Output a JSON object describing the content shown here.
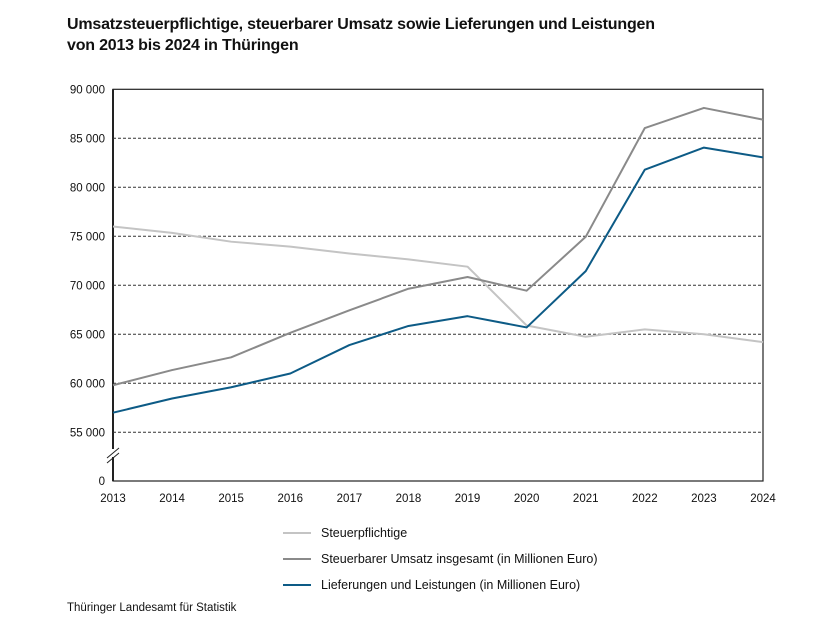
{
  "title_lines": [
    "Umsatzsteuerpflichtige, steuerbarer Umsatz sowie Lieferungen und Leistungen",
    "von 2013 bis 2024 in Thüringen"
  ],
  "footer": "Thüringer Landesamt für Statistik",
  "chart_data": {
    "type": "line",
    "title": "Umsatzsteuerpflichtige, steuerbarer Umsatz sowie Lieferungen und Leistungen von 2013 bis 2024 in Thüringen",
    "x": [
      "2013",
      "2014",
      "2015",
      "2016",
      "2017",
      "2018",
      "2019",
      "2020",
      "2021",
      "2022",
      "2023",
      "2024"
    ],
    "y_ticks": [
      "90 000",
      "85 000",
      "80 000",
      "75 000",
      "70 000",
      "65 000",
      "60 000",
      "55 000",
      "0"
    ],
    "y_tick_values": [
      90000,
      85000,
      80000,
      75000,
      70000,
      65000,
      60000,
      55000,
      0
    ],
    "ylim": [
      0,
      90000
    ],
    "y_axis_break": "between 0 and 55 000",
    "grid": "horizontal dashed",
    "legend_position": "bottom",
    "series": [
      {
        "name": "Steuerpflichtige",
        "color": "#c4c4c4",
        "values": [
          76000,
          75350,
          74450,
          73950,
          73250,
          72650,
          71900,
          65900,
          64750,
          65500,
          65000,
          64200
        ]
      },
      {
        "name": "Steuerbarer Umsatz insgesamt (in Millionen Euro)",
        "color": "#8a8a8a",
        "values": [
          59800,
          61350,
          62650,
          65150,
          67450,
          69650,
          70850,
          69450,
          74950,
          86050,
          88100,
          86900
        ]
      },
      {
        "name": "Lieferungen und Leistungen (in Millionen Euro)",
        "color": "#0d5b86",
        "values": [
          57000,
          58450,
          59600,
          61000,
          63900,
          65850,
          66850,
          65700,
          71450,
          81800,
          84050,
          83050
        ]
      }
    ]
  }
}
